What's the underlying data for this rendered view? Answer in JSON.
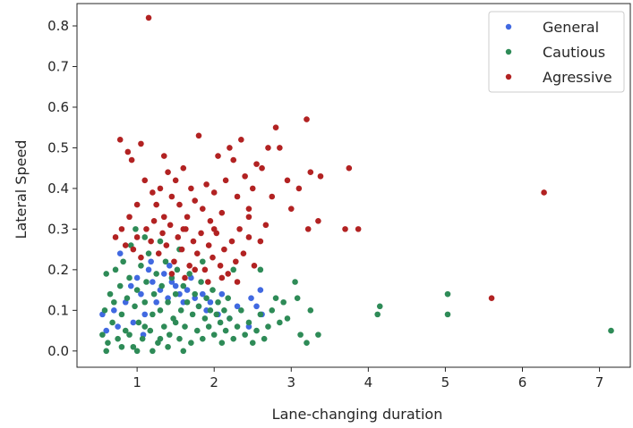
{
  "chart_data": {
    "type": "scatter",
    "title": "",
    "xlabel": "Lane-changing duration",
    "ylabel": "Lateral Speed",
    "xlim": [
      0.22,
      7.4
    ],
    "ylim": [
      -0.04,
      0.855
    ],
    "xticks": [
      1,
      2,
      3,
      4,
      5,
      6,
      7
    ],
    "yticks": [
      0.0,
      0.1,
      0.2,
      0.3,
      0.4,
      0.5,
      0.6,
      0.7,
      0.8
    ],
    "xtick_labels": [
      "1",
      "2",
      "3",
      "4",
      "5",
      "6",
      "7"
    ],
    "ytick_labels": [
      "0.0",
      "0.1",
      "0.2",
      "0.3",
      "0.4",
      "0.5",
      "0.6",
      "0.7",
      "0.8"
    ],
    "grid": false,
    "legend_position": "top-right",
    "series": [
      {
        "name": "General",
        "color": "#4169e1",
        "points": [
          [
            0.55,
            0.09
          ],
          [
            0.6,
            0.05
          ],
          [
            0.75,
            0.06
          ],
          [
            0.85,
            0.12
          ],
          [
            0.92,
            0.16
          ],
          [
            1.0,
            0.18
          ],
          [
            1.05,
            0.14
          ],
          [
            1.1,
            0.09
          ],
          [
            1.15,
            0.2
          ],
          [
            1.2,
            0.17
          ],
          [
            1.25,
            0.12
          ],
          [
            1.3,
            0.15
          ],
          [
            1.35,
            0.19
          ],
          [
            1.4,
            0.13
          ],
          [
            1.45,
            0.17
          ],
          [
            1.5,
            0.16
          ],
          [
            1.55,
            0.14
          ],
          [
            1.6,
            0.12
          ],
          [
            1.65,
            0.15
          ],
          [
            1.7,
            0.18
          ],
          [
            1.75,
            0.13
          ],
          [
            1.8,
            0.11
          ],
          [
            1.85,
            0.14
          ],
          [
            1.9,
            0.1
          ],
          [
            1.95,
            0.12
          ],
          [
            2.05,
            0.09
          ],
          [
            2.1,
            0.14
          ],
          [
            2.2,
            0.08
          ],
          [
            2.3,
            0.11
          ],
          [
            2.45,
            0.06
          ],
          [
            2.48,
            0.13
          ],
          [
            2.55,
            0.11
          ],
          [
            2.6,
            0.15
          ],
          [
            2.62,
            0.09
          ],
          [
            0.78,
            0.24
          ],
          [
            1.18,
            0.22
          ],
          [
            1.42,
            0.21
          ],
          [
            0.95,
            0.07
          ],
          [
            1.08,
            0.04
          ],
          [
            0.7,
            0.1
          ]
        ]
      },
      {
        "name": "Cautious",
        "color": "#2e8b57",
        "points": [
          [
            0.55,
            0.04
          ],
          [
            0.58,
            0.1
          ],
          [
            0.6,
            0.19
          ],
          [
            0.62,
            0.02
          ],
          [
            0.65,
            0.14
          ],
          [
            0.68,
            0.07
          ],
          [
            0.7,
            0.12
          ],
          [
            0.72,
            0.2
          ],
          [
            0.75,
            0.03
          ],
          [
            0.78,
            0.16
          ],
          [
            0.8,
            0.09
          ],
          [
            0.82,
            0.22
          ],
          [
            0.85,
            0.05
          ],
          [
            0.87,
            0.13
          ],
          [
            0.9,
            0.18
          ],
          [
            0.92,
            0.26
          ],
          [
            0.95,
            0.01
          ],
          [
            0.97,
            0.11
          ],
          [
            1.0,
            0.15
          ],
          [
            1.02,
            0.07
          ],
          [
            1.05,
            0.21
          ],
          [
            1.07,
            0.03
          ],
          [
            1.1,
            0.12
          ],
          [
            1.12,
            0.17
          ],
          [
            1.15,
            0.24
          ],
          [
            1.17,
            0.05
          ],
          [
            1.2,
            0.09
          ],
          [
            1.22,
            0.14
          ],
          [
            1.25,
            0.19
          ],
          [
            1.27,
            0.02
          ],
          [
            1.3,
            0.1
          ],
          [
            1.32,
            0.16
          ],
          [
            1.35,
            0.06
          ],
          [
            1.37,
            0.22
          ],
          [
            1.4,
            0.12
          ],
          [
            1.42,
            0.04
          ],
          [
            1.45,
            0.18
          ],
          [
            1.47,
            0.08
          ],
          [
            1.5,
            0.14
          ],
          [
            1.52,
            0.2
          ],
          [
            1.55,
            0.03
          ],
          [
            1.57,
            0.1
          ],
          [
            1.6,
            0.16
          ],
          [
            1.62,
            0.06
          ],
          [
            1.65,
            0.12
          ],
          [
            1.68,
            0.19
          ],
          [
            1.7,
            0.02
          ],
          [
            1.72,
            0.09
          ],
          [
            1.75,
            0.14
          ],
          [
            1.78,
            0.05
          ],
          [
            1.8,
            0.11
          ],
          [
            1.83,
            0.17
          ],
          [
            1.85,
            0.03
          ],
          [
            1.88,
            0.08
          ],
          [
            1.9,
            0.13
          ],
          [
            1.93,
            0.06
          ],
          [
            1.95,
            0.1
          ],
          [
            1.98,
            0.15
          ],
          [
            2.0,
            0.04
          ],
          [
            2.03,
            0.09
          ],
          [
            2.05,
            0.12
          ],
          [
            2.08,
            0.07
          ],
          [
            2.1,
            0.02
          ],
          [
            2.13,
            0.1
          ],
          [
            2.15,
            0.05
          ],
          [
            2.18,
            0.13
          ],
          [
            2.2,
            0.08
          ],
          [
            2.25,
            0.03
          ],
          [
            2.3,
            0.06
          ],
          [
            2.35,
            0.1
          ],
          [
            2.4,
            0.04
          ],
          [
            2.45,
            0.07
          ],
          [
            2.5,
            0.02
          ],
          [
            2.55,
            0.05
          ],
          [
            2.6,
            0.09
          ],
          [
            2.65,
            0.03
          ],
          [
            2.7,
            0.06
          ],
          [
            2.75,
            0.1
          ],
          [
            2.8,
            0.13
          ],
          [
            2.85,
            0.07
          ],
          [
            2.9,
            0.12
          ],
          [
            2.95,
            0.08
          ],
          [
            3.05,
            0.17
          ],
          [
            3.08,
            0.13
          ],
          [
            3.12,
            0.04
          ],
          [
            3.2,
            0.02
          ],
          [
            3.25,
            0.1
          ],
          [
            3.35,
            0.04
          ],
          [
            4.12,
            0.09
          ],
          [
            4.15,
            0.11
          ],
          [
            5.03,
            0.14
          ],
          [
            5.03,
            0.09
          ],
          [
            7.15,
            0.05
          ],
          [
            0.98,
            0.3
          ],
          [
            1.1,
            0.28
          ],
          [
            1.3,
            0.27
          ],
          [
            1.55,
            0.25
          ],
          [
            1.85,
            0.22
          ],
          [
            2.25,
            0.2
          ],
          [
            2.6,
            0.2
          ],
          [
            0.6,
            0.0
          ],
          [
            0.8,
            0.01
          ],
          [
            1.0,
            0.0
          ],
          [
            1.2,
            0.0
          ],
          [
            1.4,
            0.01
          ],
          [
            1.6,
            0.0
          ],
          [
            0.9,
            0.04
          ],
          [
            1.1,
            0.06
          ],
          [
            1.3,
            0.03
          ],
          [
            1.5,
            0.07
          ]
        ]
      },
      {
        "name": "Agressive",
        "color": "#b22222",
        "points": [
          [
            0.78,
            0.52
          ],
          [
            0.88,
            0.49
          ],
          [
            0.93,
            0.47
          ],
          [
            1.05,
            0.51
          ],
          [
            1.1,
            0.42
          ],
          [
            1.15,
            0.82
          ],
          [
            1.2,
            0.39
          ],
          [
            1.25,
            0.36
          ],
          [
            1.3,
            0.4
          ],
          [
            1.35,
            0.33
          ],
          [
            1.4,
            0.44
          ],
          [
            1.45,
            0.38
          ],
          [
            1.5,
            0.42
          ],
          [
            1.55,
            0.36
          ],
          [
            1.6,
            0.45
          ],
          [
            1.65,
            0.33
          ],
          [
            1.7,
            0.4
          ],
          [
            1.75,
            0.37
          ],
          [
            1.8,
            0.53
          ],
          [
            1.85,
            0.35
          ],
          [
            1.9,
            0.41
          ],
          [
            1.95,
            0.32
          ],
          [
            2.0,
            0.39
          ],
          [
            2.05,
            0.48
          ],
          [
            2.1,
            0.34
          ],
          [
            2.15,
            0.42
          ],
          [
            2.2,
            0.5
          ],
          [
            2.25,
            0.47
          ],
          [
            2.3,
            0.38
          ],
          [
            2.35,
            0.52
          ],
          [
            2.4,
            0.43
          ],
          [
            2.45,
            0.35
          ],
          [
            2.5,
            0.4
          ],
          [
            2.55,
            0.46
          ],
          [
            2.62,
            0.45
          ],
          [
            2.7,
            0.5
          ],
          [
            2.75,
            0.38
          ],
          [
            2.8,
            0.55
          ],
          [
            2.85,
            0.5
          ],
          [
            2.95,
            0.42
          ],
          [
            3.0,
            0.35
          ],
          [
            3.1,
            0.4
          ],
          [
            3.2,
            0.57
          ],
          [
            3.22,
            0.3
          ],
          [
            3.25,
            0.44
          ],
          [
            3.35,
            0.32
          ],
          [
            3.38,
            0.43
          ],
          [
            3.7,
            0.3
          ],
          [
            3.75,
            0.45
          ],
          [
            3.87,
            0.3
          ],
          [
            5.6,
            0.13
          ],
          [
            6.28,
            0.39
          ],
          [
            0.8,
            0.3
          ],
          [
            0.85,
            0.26
          ],
          [
            0.95,
            0.25
          ],
          [
            1.0,
            0.28
          ],
          [
            1.05,
            0.23
          ],
          [
            1.12,
            0.3
          ],
          [
            1.18,
            0.27
          ],
          [
            1.22,
            0.32
          ],
          [
            1.28,
            0.24
          ],
          [
            1.33,
            0.29
          ],
          [
            1.38,
            0.26
          ],
          [
            1.43,
            0.31
          ],
          [
            1.48,
            0.22
          ],
          [
            1.53,
            0.28
          ],
          [
            1.58,
            0.25
          ],
          [
            1.63,
            0.3
          ],
          [
            1.68,
            0.21
          ],
          [
            1.73,
            0.27
          ],
          [
            1.78,
            0.24
          ],
          [
            1.83,
            0.29
          ],
          [
            1.88,
            0.2
          ],
          [
            1.93,
            0.26
          ],
          [
            1.98,
            0.23
          ],
          [
            2.03,
            0.29
          ],
          [
            2.08,
            0.21
          ],
          [
            2.13,
            0.25
          ],
          [
            2.18,
            0.19
          ],
          [
            2.23,
            0.27
          ],
          [
            2.28,
            0.22
          ],
          [
            2.33,
            0.3
          ],
          [
            2.38,
            0.24
          ],
          [
            2.45,
            0.28
          ],
          [
            2.52,
            0.21
          ],
          [
            2.6,
            0.27
          ],
          [
            2.67,
            0.31
          ],
          [
            0.72,
            0.28
          ],
          [
            0.9,
            0.33
          ],
          [
            1.45,
            0.19
          ],
          [
            1.62,
            0.18
          ],
          [
            1.75,
            0.2
          ],
          [
            1.92,
            0.17
          ],
          [
            2.1,
            0.18
          ],
          [
            2.3,
            0.17
          ],
          [
            1.0,
            0.36
          ],
          [
            1.35,
            0.48
          ],
          [
            1.6,
            0.3
          ],
          [
            2.0,
            0.3
          ],
          [
            2.45,
            0.33
          ]
        ]
      }
    ]
  }
}
